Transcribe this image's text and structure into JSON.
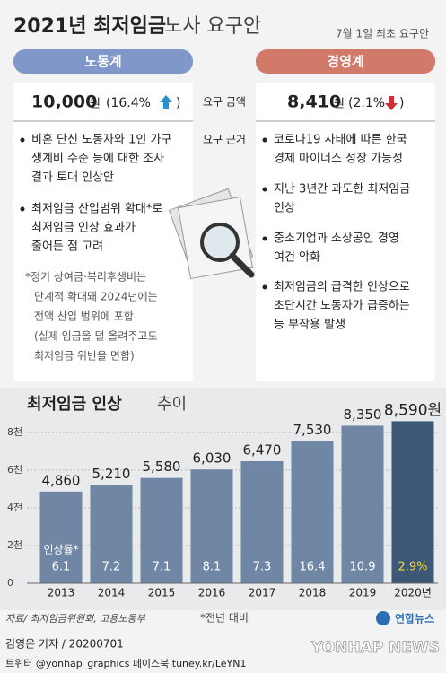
{
  "header": {
    "title": "2021년 최저임금",
    "title_light": "노사 요구안",
    "note": "7월 1일 최초 요구안"
  },
  "labor": {
    "label": "노동계",
    "amount": "10,000",
    "unit": "원",
    "rate": "(16.4%",
    "reasons": [
      [
        "비혼 단신 노동자와 1인 가구",
        "생계비 수준 등에 대한 조사",
        "결과 토대 인상안"
      ],
      [
        "최저임금 산입범위 확대*로",
        "최저임금 인상 효과가",
        "줄어든 점 고려"
      ]
    ],
    "footnote": [
      "*정기 상여금·복리후생비는",
      "단계적 확대돼 2024년에는",
      "전액 산입 범위에 포함",
      "(실제 임금을 덜 올려주고도",
      "최저임금 위반을 면함)"
    ]
  },
  "middle": {
    "amount_label": "요구 금액",
    "reason_label": "요구 근거"
  },
  "business": {
    "label": "경영계",
    "amount": "8,410",
    "unit": "원",
    "rate": "(2.1%",
    "reasons": [
      [
        "코로나19 사태에 따른 한국",
        "경제 마이너스 성장 가능성"
      ],
      [
        "지난 3년간 과도한 최저임금",
        "인상"
      ],
      [
        "중소기업과 소상공인 경영",
        "여건 악화"
      ],
      [
        "최저임금의 급격한 인상으로",
        "초단시간 노동자가 급증하는",
        "등 부작용 발생"
      ]
    ]
  },
  "chart_data": {
    "type": "bar",
    "title": "최저임금 인상",
    "title_light": "추이",
    "categories": [
      "2013",
      "2014",
      "2015",
      "2016",
      "2017",
      "2018",
      "2019",
      "2020년"
    ],
    "values": [
      4860,
      5210,
      5580,
      6030,
      6470,
      7530,
      8350,
      8590
    ],
    "value_labels": [
      "4,860",
      "5,210",
      "5,580",
      "6,030",
      "6,470",
      "7,530",
      "8,350",
      "8,590원"
    ],
    "colors": [
      "#6f87a4",
      "#6f87a4",
      "#6f87a4",
      "#6f87a4",
      "#6f87a4",
      "#6f87a4",
      "#6f87a4",
      "#3d5877"
    ],
    "rate_title": "인상률*",
    "rates": [
      "6.1",
      "7.2",
      "7.1",
      "8.1",
      "7.3",
      "16.4",
      "10.9",
      "2.9%"
    ],
    "ylim": [
      0,
      8800
    ],
    "yticks": [
      0,
      {
        "value": 2000,
        "label": "2천"
      },
      {
        "value": 4000,
        "label": "4천"
      },
      {
        "value": 6000,
        "label": "6천"
      },
      {
        "value": 8000,
        "label": "8천"
      }
    ],
    "note": "*전년 대비"
  },
  "footer": {
    "source": "자료/ 최저임금위원회, 고용노동부",
    "reporter": "김영은 기자 / 20200701",
    "sns": "트위터 @yonhap_graphics  페이스북 tuney.kr/LeYN1",
    "brand": "연합뉴스",
    "brand_en": "YONHAP NEWS"
  }
}
